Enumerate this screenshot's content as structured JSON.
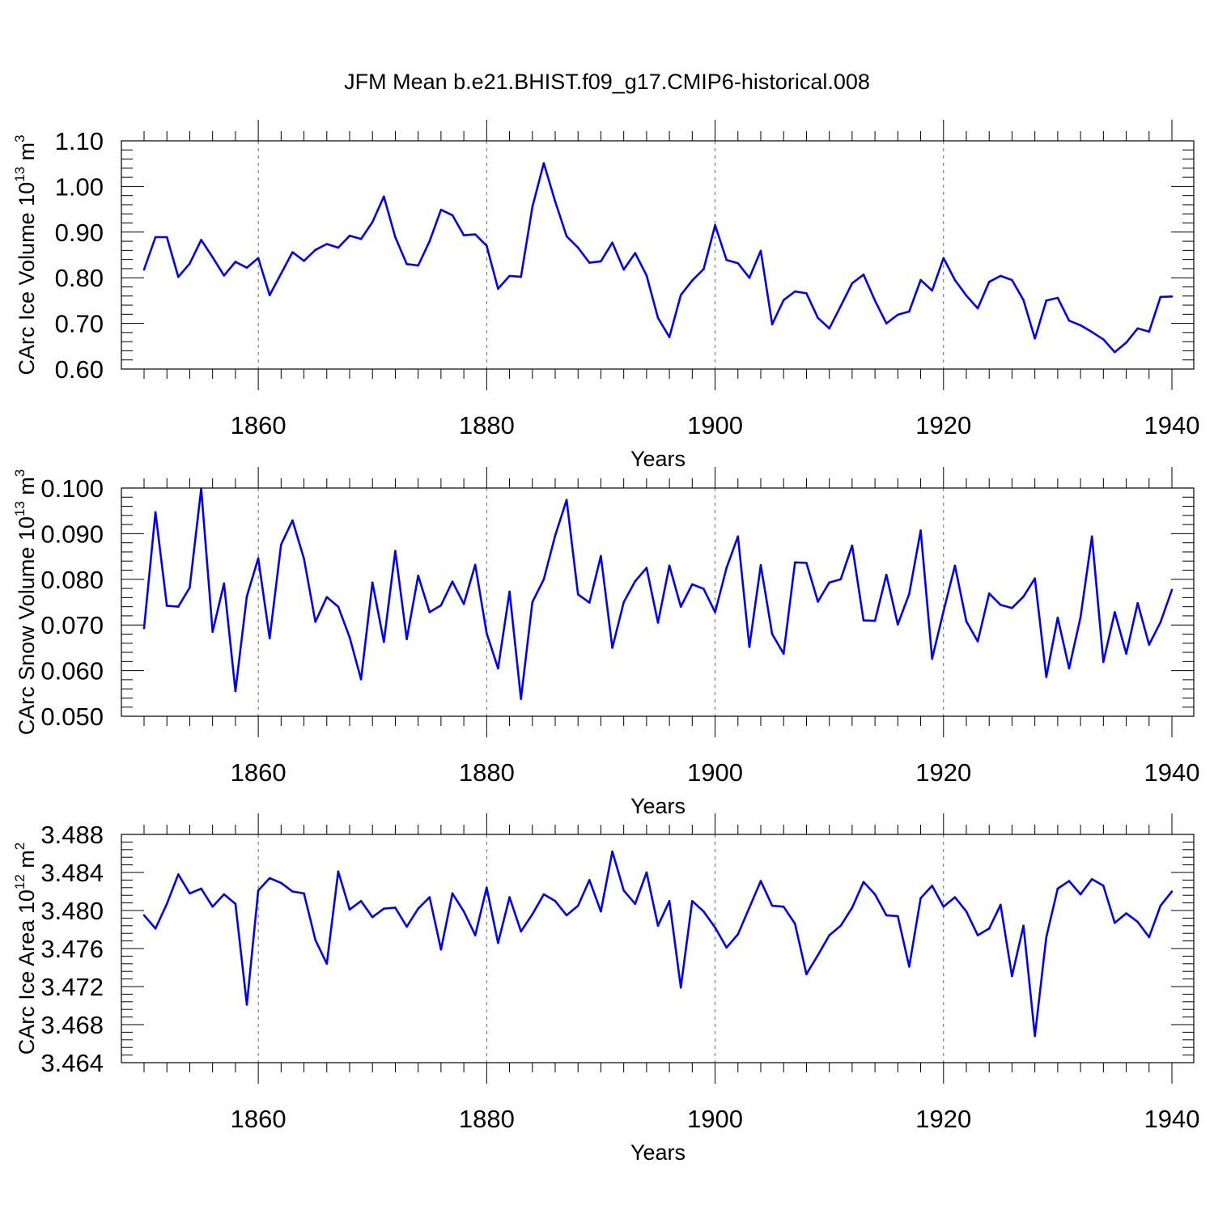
{
  "title": "JFM Mean b.e21.BHIST.f09_g17.CMIP6-historical.008",
  "line_color": "#0000ff",
  "chart_data": [
    {
      "type": "line",
      "ylabel": "CArc Ice Volume 10",
      "ylabel_exp": "13",
      "ylabel_unit": " m",
      "ylabel_unit_exp": "3",
      "xlabel": "Years",
      "xlim": [
        1850,
        1940
      ],
      "ylim": [
        0.6,
        1.1
      ],
      "xticks": [
        1860,
        1880,
        1900,
        1920,
        1940
      ],
      "yticks": [
        0.6,
        0.7,
        0.8,
        0.9,
        1.0,
        1.1
      ],
      "ytick_labels": [
        "0.60",
        "0.70",
        "0.80",
        "0.90",
        "1.00",
        "1.10"
      ],
      "grid": "dashed vertical at major x ticks",
      "x_start": 1850,
      "series": [
        {
          "values": [
            0.818,
            0.889,
            0.889,
            0.802,
            0.831,
            0.883,
            0.845,
            0.805,
            0.835,
            0.822,
            0.843,
            0.762,
            0.809,
            0.856,
            0.837,
            0.861,
            0.874,
            0.866,
            0.892,
            0.885,
            0.922,
            0.978,
            0.889,
            0.83,
            0.827,
            0.88,
            0.949,
            0.937,
            0.893,
            0.895,
            0.87,
            0.776,
            0.804,
            0.802,
            0.955,
            1.051,
            0.967,
            0.891,
            0.866,
            0.833,
            0.836,
            0.877,
            0.818,
            0.854,
            0.805,
            0.712,
            0.67,
            0.762,
            0.794,
            0.819,
            0.915,
            0.839,
            0.832,
            0.8,
            0.859,
            0.698,
            0.751,
            0.77,
            0.766,
            0.712,
            0.689,
            0.738,
            0.788,
            0.807,
            0.75,
            0.7,
            0.719,
            0.726,
            0.795,
            0.772,
            0.843,
            0.795,
            0.761,
            0.733,
            0.791,
            0.804,
            0.795,
            0.751,
            0.667,
            0.75,
            0.756,
            0.706,
            0.696,
            0.681,
            0.665,
            0.637,
            0.658,
            0.689,
            0.682,
            0.758,
            0.759
          ]
        }
      ]
    },
    {
      "type": "line",
      "ylabel": "CArc Snow Volume 10",
      "ylabel_exp": "13",
      "ylabel_unit": " m",
      "ylabel_unit_exp": "3",
      "xlabel": "Years",
      "xlim": [
        1850,
        1940
      ],
      "ylim": [
        0.05,
        0.1
      ],
      "xticks": [
        1860,
        1880,
        1900,
        1920,
        1940
      ],
      "yticks": [
        0.05,
        0.06,
        0.07,
        0.08,
        0.09,
        0.1
      ],
      "ytick_labels": [
        "0.050",
        "0.060",
        "0.070",
        "0.080",
        "0.090",
        "0.100"
      ],
      "grid": "dashed vertical at major x ticks",
      "x_start": 1850,
      "series": [
        {
          "values": [
            0.0693,
            0.0947,
            0.0742,
            0.074,
            0.0782,
            0.0999,
            0.0685,
            0.0791,
            0.0555,
            0.0763,
            0.0846,
            0.0671,
            0.0876,
            0.0929,
            0.0845,
            0.0707,
            0.0761,
            0.074,
            0.0673,
            0.0581,
            0.0793,
            0.0663,
            0.0862,
            0.0669,
            0.0808,
            0.0728,
            0.0743,
            0.0795,
            0.0746,
            0.0832,
            0.0682,
            0.0605,
            0.0773,
            0.0538,
            0.075,
            0.08,
            0.0896,
            0.0974,
            0.0767,
            0.0749,
            0.0851,
            0.065,
            0.075,
            0.0796,
            0.0825,
            0.0705,
            0.083,
            0.074,
            0.0789,
            0.0779,
            0.0728,
            0.0825,
            0.0894,
            0.0652,
            0.0831,
            0.068,
            0.0637,
            0.0837,
            0.0836,
            0.0751,
            0.0793,
            0.08,
            0.0874,
            0.071,
            0.0709,
            0.081,
            0.0701,
            0.0768,
            0.0907,
            0.0626,
            0.073,
            0.083,
            0.0708,
            0.0664,
            0.0769,
            0.0744,
            0.0737,
            0.0762,
            0.0802,
            0.0586,
            0.0716,
            0.0605,
            0.0717,
            0.0894,
            0.0619,
            0.0728,
            0.0637,
            0.0748,
            0.0657,
            0.0706,
            0.0777
          ]
        }
      ]
    },
    {
      "type": "line",
      "ylabel": "CArc Ice Area 10",
      "ylabel_exp": "12",
      "ylabel_unit": " m",
      "ylabel_unit_exp": "2",
      "xlabel": "Years",
      "xlim": [
        1850,
        1940
      ],
      "ylim": [
        3.464,
        3.488
      ],
      "xticks": [
        1860,
        1880,
        1900,
        1920,
        1940
      ],
      "yticks": [
        3.464,
        3.468,
        3.472,
        3.476,
        3.48,
        3.484,
        3.488
      ],
      "ytick_labels": [
        "3.464",
        "3.468",
        "3.472",
        "3.476",
        "3.480",
        "3.484",
        "3.488"
      ],
      "grid": "dashed vertical at major x ticks",
      "x_start": 1850,
      "series": [
        {
          "values": [
            3.4795,
            3.4781,
            3.4807,
            3.4838,
            3.4818,
            3.4823,
            3.4804,
            3.4817,
            3.4807,
            3.4701,
            3.4821,
            3.4834,
            3.4829,
            3.482,
            3.4818,
            3.4769,
            3.4744,
            3.4841,
            3.4801,
            3.481,
            3.4793,
            3.4802,
            3.4803,
            3.4783,
            3.4802,
            3.4814,
            3.4759,
            3.4818,
            3.4799,
            3.4774,
            3.4824,
            3.4766,
            3.4814,
            3.4778,
            3.4796,
            3.4817,
            3.481,
            3.4795,
            3.4805,
            3.4832,
            3.4799,
            3.4862,
            3.4821,
            3.4807,
            3.484,
            3.4784,
            3.481,
            3.4719,
            3.481,
            3.4799,
            3.4782,
            3.4761,
            3.4775,
            3.4803,
            3.4831,
            3.4805,
            3.4804,
            3.4786,
            3.4733,
            3.4753,
            3.4774,
            3.4784,
            3.4803,
            3.483,
            3.4817,
            3.4795,
            3.4794,
            3.4741,
            3.4813,
            3.4826,
            3.4804,
            3.4814,
            3.4799,
            3.4774,
            3.4781,
            3.4806,
            3.4731,
            3.4784,
            3.4668,
            3.4772,
            3.4823,
            3.4831,
            3.4817,
            3.4833,
            3.4826,
            3.4787,
            3.4797,
            3.4788,
            3.4772,
            3.4805,
            3.482
          ]
        }
      ]
    }
  ]
}
